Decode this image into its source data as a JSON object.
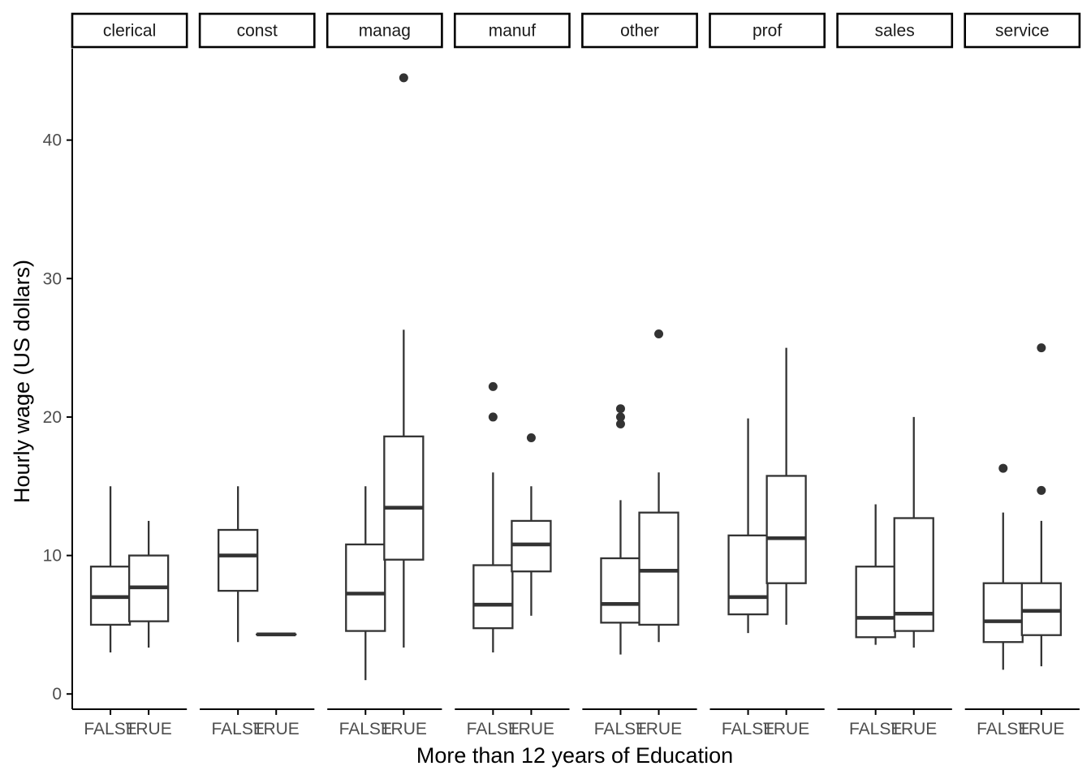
{
  "chart_data": {
    "type": "boxplot",
    "facet_by": "occupation",
    "xlabel": "More than 12 years of Education",
    "ylabel": "Hourly wage (US dollars)",
    "ylim": [
      -1.1,
      46.6
    ],
    "yticks": [
      0,
      10,
      20,
      30,
      40
    ],
    "grid": false,
    "categories": [
      "FALSE",
      "TRUE"
    ],
    "panels": [
      {
        "name": "clerical",
        "boxes": [
          {
            "x": "FALSE",
            "min": 3.0,
            "q1": 5.0,
            "median": 7.0,
            "q3": 9.2,
            "max": 15.0,
            "outliers": []
          },
          {
            "x": "TRUE",
            "min": 3.35,
            "q1": 5.25,
            "median": 7.7,
            "q3": 10.0,
            "max": 12.5,
            "outliers": []
          }
        ]
      },
      {
        "name": "const",
        "boxes": [
          {
            "x": "FALSE",
            "min": 3.75,
            "q1": 7.45,
            "median": 10.0,
            "q3": 11.85,
            "max": 15.0,
            "outliers": []
          },
          {
            "x": "TRUE",
            "min": 4.3,
            "q1": 4.3,
            "median": 4.3,
            "q3": 4.3,
            "max": 4.3,
            "outliers": []
          }
        ]
      },
      {
        "name": "manag",
        "boxes": [
          {
            "x": "FALSE",
            "min": 1.0,
            "q1": 4.55,
            "median": 7.25,
            "q3": 10.8,
            "max": 15.0,
            "outliers": []
          },
          {
            "x": "TRUE",
            "min": 3.35,
            "q1": 9.7,
            "median": 13.45,
            "q3": 18.6,
            "max": 26.3,
            "outliers": [
              44.5
            ]
          }
        ]
      },
      {
        "name": "manuf",
        "boxes": [
          {
            "x": "FALSE",
            "min": 3.0,
            "q1": 4.75,
            "median": 6.45,
            "q3": 9.3,
            "max": 16.0,
            "outliers": [
              20.0,
              22.2
            ]
          },
          {
            "x": "TRUE",
            "min": 5.65,
            "q1": 8.85,
            "median": 10.8,
            "q3": 12.5,
            "max": 15.0,
            "outliers": [
              18.5
            ]
          }
        ]
      },
      {
        "name": "other",
        "boxes": [
          {
            "x": "FALSE",
            "min": 2.85,
            "q1": 5.15,
            "median": 6.5,
            "q3": 9.8,
            "max": 14.0,
            "outliers": [
              19.5,
              20.0,
              20.6
            ]
          },
          {
            "x": "TRUE",
            "min": 3.75,
            "q1": 5.0,
            "median": 8.9,
            "q3": 13.1,
            "max": 16.0,
            "outliers": [
              26.0
            ]
          }
        ]
      },
      {
        "name": "prof",
        "boxes": [
          {
            "x": "FALSE",
            "min": 4.4,
            "q1": 5.75,
            "median": 7.0,
            "q3": 11.45,
            "max": 19.9,
            "outliers": []
          },
          {
            "x": "TRUE",
            "min": 5.0,
            "q1": 8.0,
            "median": 11.25,
            "q3": 15.75,
            "max": 25.0,
            "outliers": []
          }
        ]
      },
      {
        "name": "sales",
        "boxes": [
          {
            "x": "FALSE",
            "min": 3.55,
            "q1": 4.1,
            "median": 5.5,
            "q3": 9.2,
            "max": 13.7,
            "outliers": []
          },
          {
            "x": "TRUE",
            "min": 3.35,
            "q1": 4.55,
            "median": 5.8,
            "q3": 12.7,
            "max": 20.0,
            "outliers": []
          }
        ]
      },
      {
        "name": "service",
        "boxes": [
          {
            "x": "FALSE",
            "min": 1.75,
            "q1": 3.75,
            "median": 5.25,
            "q3": 8.0,
            "max": 13.1,
            "outliers": [
              16.3
            ]
          },
          {
            "x": "TRUE",
            "min": 2.0,
            "q1": 4.25,
            "median": 6.0,
            "q3": 8.0,
            "max": 12.5,
            "outliers": [
              14.7,
              25.0
            ]
          }
        ]
      }
    ]
  }
}
